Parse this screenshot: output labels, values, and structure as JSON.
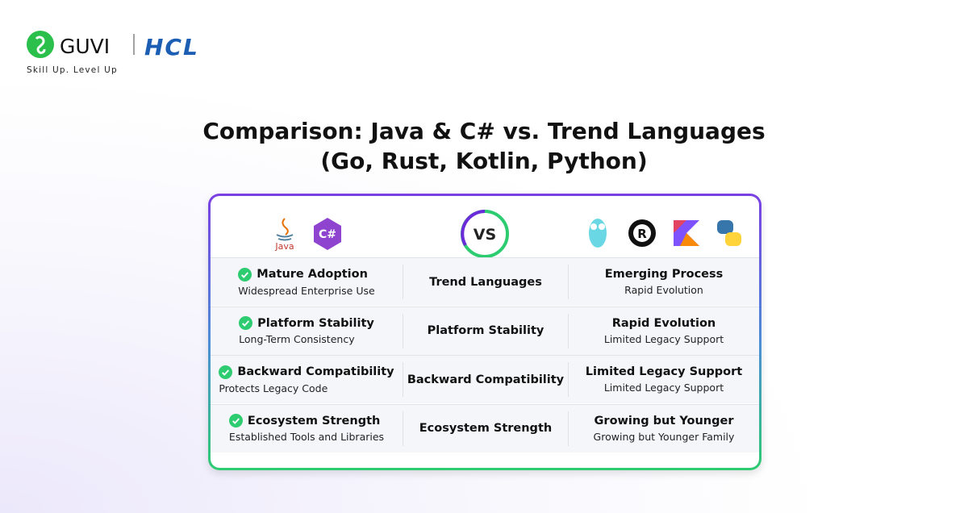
{
  "header": {
    "brand": "GUVI",
    "partner": "HCL",
    "tagline": "Skill Up. Level Up"
  },
  "title": {
    "line1": "Comparison: Java & C# vs. Trend Languages",
    "line2": "(Go, Rust, Kotlin, Python)"
  },
  "table": {
    "icons": {
      "java": "Java",
      "csharp": "C#",
      "vs": "VS"
    },
    "rows": [
      {
        "left_title": "Mature Adoption",
        "left_sub": "Widespread Enterprise Use",
        "middle": "Trend Languages",
        "right_title": "Emerging Process",
        "right_sub": "Rapid Evolution"
      },
      {
        "left_title": "Platform Stability",
        "left_sub": "Long-Term Consistency",
        "middle": "Platform Stability",
        "right_title": "Rapid Evolution",
        "right_sub": "Limited Legacy Support"
      },
      {
        "left_title": "Backward Compatibility",
        "left_sub": "Protects Legacy Code",
        "middle": "Backward Compatibility",
        "right_title": "Limited Legacy Support",
        "right_sub": "Limited Legacy Support"
      },
      {
        "left_title": "Ecosystem Strength",
        "left_sub": "Established Tools and Libraries",
        "middle": "Ecosystem Strength",
        "right_title": "Growing but Younger",
        "right_sub": "Growing but Younger Family"
      }
    ]
  }
}
